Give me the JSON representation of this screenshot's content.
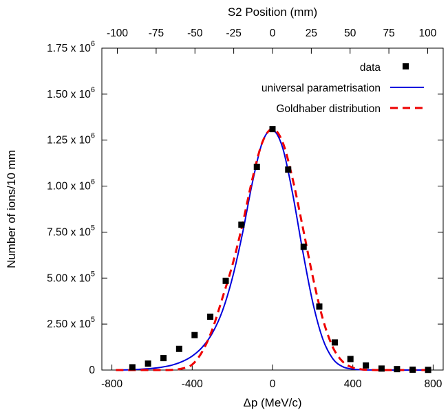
{
  "chart_data": {
    "type": "scatter",
    "xlabel": "Δp (MeV/c)",
    "ylabel": "Number of ions/10 mm",
    "x2label": "S2 Position (mm)",
    "xlim": [
      -850,
      850
    ],
    "ylim": [
      0,
      1750000
    ],
    "x2lim": [
      -110,
      110
    ],
    "x_ticks": [
      -800,
      -400,
      0,
      400,
      800
    ],
    "x2_ticks": [
      -100,
      -75,
      -50,
      -25,
      0,
      25,
      50,
      75,
      100
    ],
    "y_ticks": [
      {
        "value": 0,
        "mantissa": "0",
        "exp": ""
      },
      {
        "value": 250000,
        "mantissa": "2.50 x 10",
        "exp": "5"
      },
      {
        "value": 500000,
        "mantissa": "5.00 x 10",
        "exp": "5"
      },
      {
        "value": 750000,
        "mantissa": "7.50 x 10",
        "exp": "5"
      },
      {
        "value": 1000000,
        "mantissa": "1.00 x 10",
        "exp": "6"
      },
      {
        "value": 1250000,
        "mantissa": "1.25 x 10",
        "exp": "6"
      },
      {
        "value": 1500000,
        "mantissa": "1.50 x 10",
        "exp": "6"
      },
      {
        "value": 1750000,
        "mantissa": "1.75 x 10",
        "exp": "6"
      }
    ],
    "grid": false,
    "legend_position": "top-right",
    "series": [
      {
        "name": "data",
        "kind": "points",
        "color": "#000000",
        "x": [
          -698,
          -620,
          -543,
          -465,
          -388,
          -310,
          -233,
          -155,
          -78,
          0,
          78,
          155,
          233,
          310,
          388,
          465,
          543,
          620,
          698,
          775
        ],
        "y": [
          15000,
          35000,
          65000,
          115000,
          190000,
          290000,
          485000,
          790000,
          1105000,
          1310000,
          1090000,
          670000,
          345000,
          150000,
          60000,
          25000,
          8000,
          5000,
          2000,
          1000
        ]
      },
      {
        "name": "universal parametrisation",
        "kind": "line",
        "color": "#0000dd",
        "x": [
          -780,
          -700,
          -650,
          -600,
          -550,
          -500,
          -450,
          -400,
          -350,
          -300,
          -250,
          -200,
          -150,
          -100,
          -50,
          0,
          50,
          100,
          150,
          200,
          250,
          300,
          350,
          400,
          450,
          500,
          550,
          600,
          650,
          700,
          780
        ],
        "y": [
          0,
          2000,
          5000,
          9000,
          16000,
          27000,
          46000,
          76000,
          124000,
          200000,
          320000,
          500000,
          740000,
          1020000,
          1240000,
          1305000,
          1210000,
          960000,
          650000,
          370000,
          170000,
          62000,
          18000,
          5000,
          1000,
          300,
          0,
          0,
          0,
          0,
          0
        ]
      },
      {
        "name": "Goldhaber distribution",
        "kind": "dashed-line",
        "color": "#ee0000",
        "x": [
          -780,
          -550,
          -500,
          -450,
          -400,
          -350,
          -300,
          -250,
          -200,
          -150,
          -100,
          -50,
          0,
          50,
          100,
          150,
          200,
          250,
          300,
          350,
          400,
          450,
          500,
          550,
          600,
          650,
          700,
          780
        ],
        "y": [
          0,
          0,
          1000,
          8000,
          30000,
          100000,
          220000,
          390000,
          570000,
          790000,
          1040000,
          1240000,
          1310000,
          1240000,
          1040000,
          780000,
          510000,
          280000,
          125000,
          45000,
          13000,
          3000,
          500,
          0,
          0,
          0,
          0,
          0
        ]
      }
    ]
  }
}
